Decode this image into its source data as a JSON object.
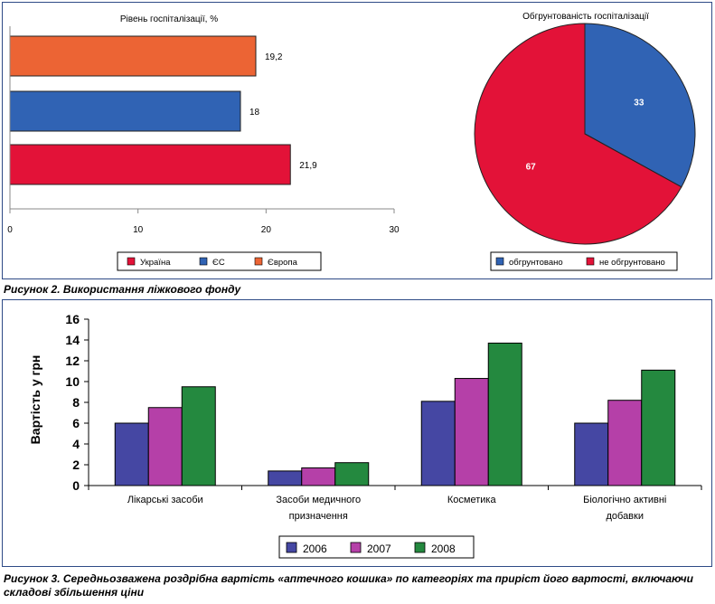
{
  "figure1": {
    "caption": "Рисунок 2. Використання ліжкового фонду",
    "colors": {
      "ukraine": "#e31238",
      "eu": "#3063b4",
      "europe": "#ec6434",
      "pie_justified": "#3063b4",
      "pie_unjustified": "#e31238"
    }
  },
  "figure2": {
    "caption": "Рисунок 3. Середньозважена роздрібна вартість «аптечного кошика» по категоріях та приріст його вартості, включаючи складові збільшення ціни",
    "colors": {
      "s2006": "#4547a3",
      "s2007": "#b540a8",
      "s2008": "#24893f"
    }
  },
  "chart_data": [
    {
      "type": "bar",
      "orientation": "horizontal",
      "title": "Рівень госпіталізації, %",
      "categories": [
        "Європа",
        "ЄС",
        "Україна"
      ],
      "values": [
        19.2,
        18,
        21.9
      ],
      "value_labels": [
        "19,2",
        "18",
        "21,9"
      ],
      "xlim": [
        0,
        30
      ],
      "xticks": [
        0,
        10,
        20,
        30
      ],
      "legend": [
        "Україна",
        "ЄС",
        "Європа"
      ],
      "legend_position": "bottom",
      "grid": false
    },
    {
      "type": "pie",
      "title": "Обгрунтованість госпіталізації",
      "labels": [
        "обгрунтовано",
        "не обгрунтовано"
      ],
      "values": [
        33,
        67
      ],
      "legend_position": "bottom"
    },
    {
      "type": "bar",
      "ylabel": "Вартість у грн",
      "categories": [
        [
          "Лікарські засоби"
        ],
        [
          "Засоби медичного",
          "призначення"
        ],
        [
          "Косметика"
        ],
        [
          "Біологічно активні",
          "добавки"
        ]
      ],
      "series": [
        {
          "name": "2006",
          "values": [
            6.0,
            1.4,
            8.1,
            6.0
          ]
        },
        {
          "name": "2007",
          "values": [
            7.5,
            1.7,
            10.3,
            8.2
          ]
        },
        {
          "name": "2008",
          "values": [
            9.5,
            2.2,
            13.7,
            11.1
          ]
        }
      ],
      "ylim": [
        0,
        16
      ],
      "yticks": [
        0,
        2,
        4,
        6,
        8,
        10,
        12,
        14,
        16
      ],
      "legend_position": "bottom",
      "grid": false
    }
  ]
}
